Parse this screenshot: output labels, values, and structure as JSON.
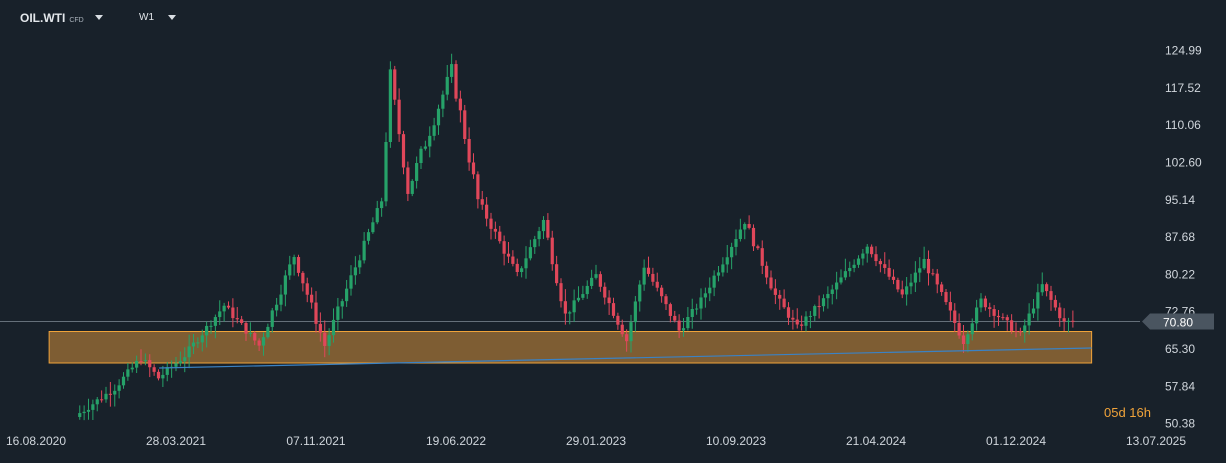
{
  "header": {
    "symbol": "OIL.WTI",
    "symbol_type": "CFD",
    "timeframe": "W1"
  },
  "countdown": "05d 16h",
  "colors": {
    "background": "#18212a",
    "up": "#26a269",
    "down": "#e0475a",
    "zone_fill": "#8a6434",
    "zone_border": "#f0a33a",
    "trendline": "#3b82c4",
    "price_line": "#7f8b96",
    "price_badge": "#4a5560",
    "countdown": "#f0a33a"
  },
  "chart_data": {
    "type": "candlestick",
    "y_axis": {
      "range": [
        48.5,
        133.5
      ],
      "ticks": [
        "124.99",
        "117.52",
        "110.06",
        "102.60",
        "95.14",
        "87.68",
        "80.22",
        "72.76",
        "65.30",
        "57.84",
        "50.38"
      ]
    },
    "x_axis": {
      "range": [
        "2020-08-16",
        "2025-07-13"
      ],
      "ticks": [
        "16.08.2020",
        "28.03.2021",
        "07.11.2021",
        "19.06.2022",
        "29.01.2023",
        "10.09.2023",
        "21.04.2024",
        "01.12.2024",
        "13.07.2025"
      ]
    },
    "current_price": {
      "value": 70.8,
      "label": "70.80"
    },
    "support_zone": {
      "y_low": 62.5,
      "y_high": 68.8,
      "x_start": "2020-09-06",
      "x_end": "2025-04-01"
    },
    "trendline": {
      "start": {
        "x": "2021-03-01",
        "y": 61.5
      },
      "end": {
        "x": "2025-04-01",
        "y": 65.5
      }
    },
    "price_path": [
      {
        "x": "2020-10-25",
        "y": 52.5
      },
      {
        "x": "2020-12-20",
        "y": 57.5
      },
      {
        "x": "2021-01-31",
        "y": 63.5
      },
      {
        "x": "2021-02-28",
        "y": 59.5
      },
      {
        "x": "2021-04-11",
        "y": 64.0
      },
      {
        "x": "2021-06-13",
        "y": 74.0
      },
      {
        "x": "2021-08-08",
        "y": 66.0
      },
      {
        "x": "2021-10-03",
        "y": 84.0
      },
      {
        "x": "2021-11-21",
        "y": 66.0
      },
      {
        "x": "2022-01-16",
        "y": 84.0
      },
      {
        "x": "2022-02-20",
        "y": 95.0
      },
      {
        "x": "2022-03-06",
        "y": 120.0
      },
      {
        "x": "2022-04-03",
        "y": 97.0
      },
      {
        "x": "2022-06-12",
        "y": 121.0
      },
      {
        "x": "2022-07-24",
        "y": 95.0
      },
      {
        "x": "2022-09-25",
        "y": 80.0
      },
      {
        "x": "2022-11-06",
        "y": 91.0
      },
      {
        "x": "2022-12-11",
        "y": 72.0
      },
      {
        "x": "2023-01-29",
        "y": 80.0
      },
      {
        "x": "2023-03-19",
        "y": 67.0
      },
      {
        "x": "2023-04-16",
        "y": 82.0
      },
      {
        "x": "2023-06-11",
        "y": 69.0
      },
      {
        "x": "2023-07-16",
        "y": 75.0
      },
      {
        "x": "2023-09-24",
        "y": 91.0
      },
      {
        "x": "2023-11-12",
        "y": 76.0
      },
      {
        "x": "2023-12-17",
        "y": 69.5
      },
      {
        "x": "2024-02-04",
        "y": 76.0
      },
      {
        "x": "2024-04-07",
        "y": 86.0
      },
      {
        "x": "2024-06-02",
        "y": 76.0
      },
      {
        "x": "2024-07-07",
        "y": 83.0
      },
      {
        "x": "2024-09-08",
        "y": 67.0
      },
      {
        "x": "2024-10-06",
        "y": 75.0
      },
      {
        "x": "2024-12-08",
        "y": 68.0
      },
      {
        "x": "2025-01-12",
        "y": 78.0
      },
      {
        "x": "2025-02-16",
        "y": 70.5
      },
      {
        "x": "2025-03-02",
        "y": 70.8
      }
    ]
  }
}
